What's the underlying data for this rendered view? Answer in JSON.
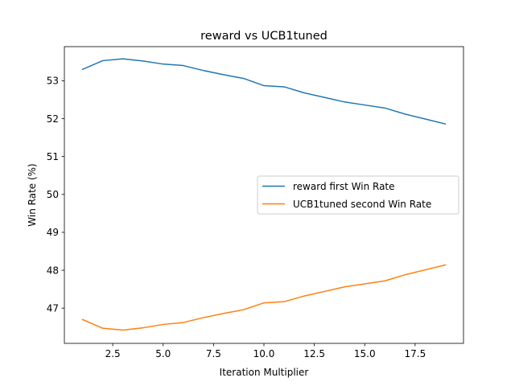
{
  "chart_data": {
    "type": "line",
    "title": "reward vs UCB1tuned",
    "xlabel": "Iteration Multiplier",
    "ylabel": "Win Rate (%)",
    "xlim": [
      0.1,
      19.9
    ],
    "ylim": [
      46.07,
      53.9
    ],
    "xticks": [
      2.5,
      5.0,
      7.5,
      10.0,
      12.5,
      15.0,
      17.5
    ],
    "xtick_labels": [
      "2.5",
      "5.0",
      "7.5",
      "10.0",
      "12.5",
      "15.0",
      "17.5"
    ],
    "yticks": [
      47,
      48,
      49,
      50,
      51,
      52,
      53
    ],
    "ytick_labels": [
      "47",
      "48",
      "49",
      "50",
      "51",
      "52",
      "53"
    ],
    "grid": false,
    "legend_position": "center-right",
    "x": [
      1,
      2,
      3,
      4,
      5,
      6,
      7,
      8,
      9,
      10,
      11,
      12,
      13,
      14,
      15,
      16,
      17,
      18,
      19
    ],
    "series": [
      {
        "name": "reward first Win Rate",
        "color": "#1f77b4",
        "values": [
          53.3,
          53.53,
          53.58,
          53.52,
          53.44,
          53.4,
          53.27,
          53.16,
          53.06,
          52.87,
          52.84,
          52.68,
          52.56,
          52.44,
          52.36,
          52.28,
          52.12,
          51.99,
          51.86
        ]
      },
      {
        "name": "UCB1tuned second Win Rate",
        "color": "#ff7f0e",
        "values": [
          46.7,
          46.47,
          46.42,
          46.48,
          46.57,
          46.62,
          46.75,
          46.86,
          46.96,
          47.14,
          47.17,
          47.32,
          47.44,
          47.56,
          47.64,
          47.72,
          47.88,
          48.01,
          48.14
        ]
      }
    ]
  }
}
